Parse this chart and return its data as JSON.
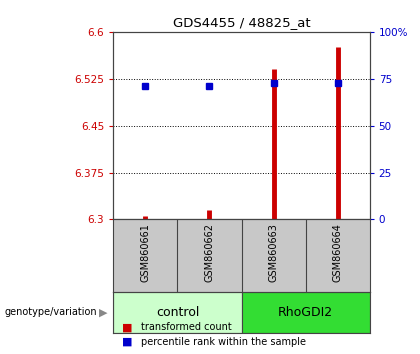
{
  "title": "GDS4455 / 48825_at",
  "samples": [
    "GSM860661",
    "GSM860662",
    "GSM860663",
    "GSM860664"
  ],
  "groups": [
    "control",
    "control",
    "RhoGDI2",
    "RhoGDI2"
  ],
  "transformed_counts": [
    6.305,
    6.315,
    6.54,
    6.575
  ],
  "percentile_ranks": [
    71,
    71,
    73,
    73
  ],
  "ylim_left": [
    6.3,
    6.6
  ],
  "ylim_right": [
    0,
    100
  ],
  "yticks_left": [
    6.3,
    6.375,
    6.45,
    6.525,
    6.6
  ],
  "ytick_labels_left": [
    "6.3",
    "6.375",
    "6.45",
    "6.525",
    "6.6"
  ],
  "yticks_right": [
    0,
    25,
    50,
    75,
    100
  ],
  "ytick_labels_right": [
    "0",
    "25",
    "50",
    "75",
    "100%"
  ],
  "bar_color": "#CC0000",
  "dot_color": "#0000CC",
  "background_color": "#FFFFFF",
  "label_color_left": "#CC0000",
  "label_color_right": "#0000CC",
  "sample_bg_color": "#C8C8C8",
  "control_bg_light": "#CCFFCC",
  "rhogdi2_bg_dark": "#33DD33",
  "legend_label_red": "transformed count",
  "legend_label_blue": "percentile rank within the sample",
  "genotype_label": "genotype/variation",
  "group_names": [
    "control",
    "RhoGDI2"
  ]
}
